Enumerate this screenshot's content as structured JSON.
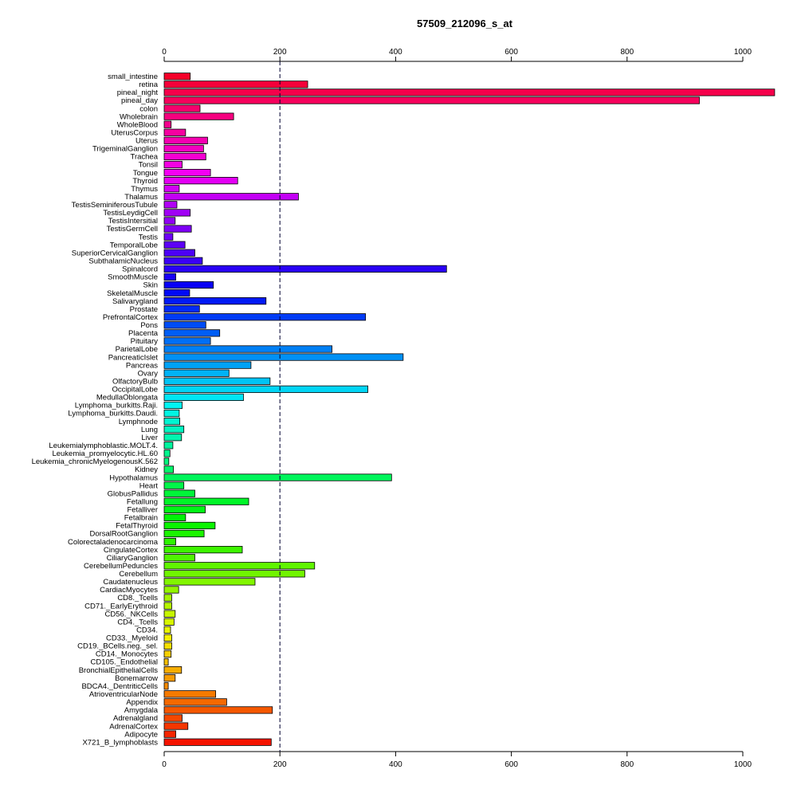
{
  "chart_data": {
    "type": "bar",
    "orientation": "horizontal",
    "title": "57509_212096_s_at",
    "xlabel": "",
    "ylabel": "",
    "xlim": [
      0,
      1000
    ],
    "xticks": [
      0,
      200,
      400,
      600,
      800,
      1000
    ],
    "reference_line": 200,
    "grid": false,
    "categories": [
      "small_intestine",
      "retina",
      "pineal_night",
      "pineal_day",
      "colon",
      "Wholebrain",
      "WholeBlood",
      "UterusCorpus",
      "Uterus",
      "TrigeminalGanglion",
      "Trachea",
      "Tonsil",
      "Tongue",
      "Thyroid",
      "Thymus",
      "Thalamus",
      "TestisSeminiferousTubule",
      "TestisLeydigCell",
      "TestisIntersitial",
      "TestisGermCell",
      "Testis",
      "TemporalLobe",
      "SuperiorCervicalGanglion",
      "SubthalamicNucleus",
      "Spinalcord",
      "SmoothMuscle",
      "Skin",
      "SkeletalMuscle",
      "Salivarygland",
      "Prostate",
      "PrefrontalCortex",
      "Pons",
      "Placenta",
      "Pituitary",
      "ParietalLobe",
      "PancreaticIslet",
      "Pancreas",
      "Ovary",
      "OlfactoryBulb",
      "OccipitalLobe",
      "MedullaOblongata",
      "Lymphoma_burkitts.Raji.",
      "Lymphoma_burkitts.Daudi.",
      "Lymphnode",
      "Lung",
      "Liver",
      "Leukemialymphoblastic.MOLT.4.",
      "Leukemia_promyelocytic.HL.60",
      "Leukemia_chronicMyelogenousK.562",
      "Kidney",
      "Hypothalamus",
      "Heart",
      "GlobusPallidus",
      "Fetallung",
      "Fetalliver",
      "Fetalbrain",
      "FetalThyroid",
      "DorsalRootGanglion",
      "Colorectaladenocarcinoma",
      "CingulateCortex",
      "CiliaryGanglion",
      "CerebellumPeduncles",
      "Cerebellum",
      "Caudatenucleus",
      "CardiacMyocytes",
      "CD8._Tcells",
      "CD71._EarlyErythroid",
      "CD56._NKCells",
      "CD4._Tcells",
      "CD34.",
      "CD33._Myeloid",
      "CD19._BCells.neg._sel.",
      "CD14._Monocytes",
      "CD105._Endothelial",
      "BronchialEpithelialCells",
      "Bonemarrow",
      "BDCA4._DentriticCells",
      "AtrioventricularNode",
      "Appendix",
      "Amygdala",
      "Adrenalgland",
      "AdrenalCortex",
      "Adipocyte",
      "X721_B_lymphoblasts"
    ],
    "values": [
      45,
      248,
      1055,
      925,
      62,
      120,
      12,
      37,
      75,
      68,
      72,
      31,
      80,
      127,
      26,
      232,
      22,
      45,
      19,
      47,
      15,
      36,
      53,
      66,
      488,
      20,
      85,
      44,
      176,
      61,
      348,
      72,
      96,
      80,
      290,
      413,
      150,
      112,
      183,
      352,
      137,
      31,
      26,
      27,
      34,
      30,
      15,
      10,
      8,
      16,
      393,
      34,
      53,
      146,
      71,
      37,
      88,
      69,
      20,
      135,
      53,
      260,
      243,
      157,
      25,
      13,
      13,
      19,
      17,
      11,
      13,
      13,
      12,
      7,
      30,
      19,
      7,
      89,
      108,
      187,
      31,
      41,
      20,
      185
    ]
  }
}
